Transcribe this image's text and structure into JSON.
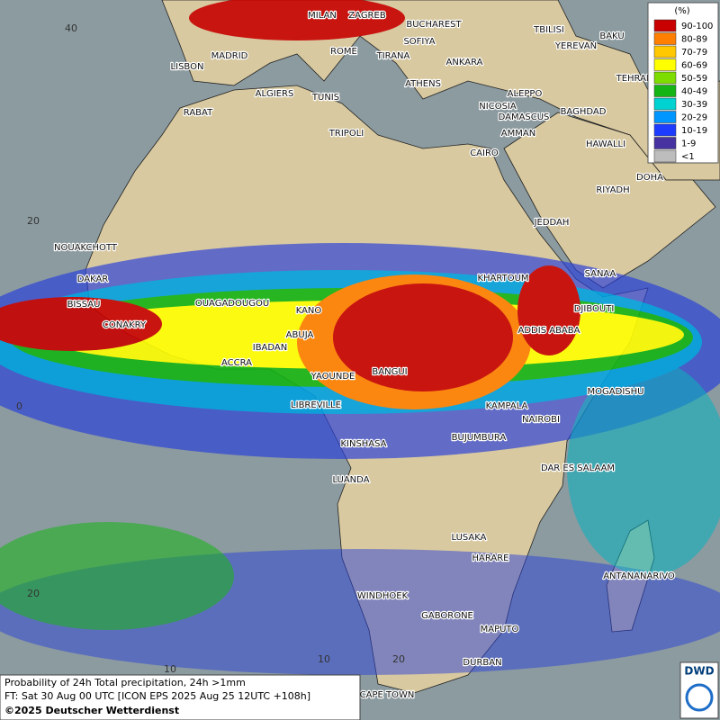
{
  "legend": {
    "unit": "(%)",
    "items": [
      {
        "label": "90-100",
        "color": "#c80000"
      },
      {
        "label": "80-89",
        "color": "#ff7f00"
      },
      {
        "label": "70-79",
        "color": "#ffc800"
      },
      {
        "label": "60-69",
        "color": "#ffff00"
      },
      {
        "label": "50-59",
        "color": "#7ddc00"
      },
      {
        "label": "40-49",
        "color": "#14b414"
      },
      {
        "label": "30-39",
        "color": "#00d2d2"
      },
      {
        "label": "20-29",
        "color": "#0096ff"
      },
      {
        "label": "10-19",
        "color": "#1e3cff"
      },
      {
        "label": "1-9",
        "color": "#4632a0"
      },
      {
        "label": "<1",
        "color": "#bdbdbd"
      }
    ]
  },
  "cities": [
    "MILAN",
    "ZAGREB",
    "BUCHAREST",
    "TBILISI",
    "BAKU",
    "SOFIYA",
    "YEREVAN",
    "MADRID",
    "ROME",
    "TIRANA",
    "ANKARA",
    "LISBON",
    "TEHRAN",
    "ATHENS",
    "ALGIERS",
    "TUNIS",
    "ALEPPO",
    "NICOSIA",
    "RABAT",
    "BAGHDAD",
    "DAMASCUS",
    "AMMAN",
    "TRIPOLI",
    "HAWALLI",
    "CAIRO",
    "DOHA",
    "RIYADH",
    "JEDDAH",
    "NOUAKCHOTT",
    "SANAA",
    "KHARTOUM",
    "DAKAR",
    "DJIBOUTI",
    "BISSAU",
    "OUAGADOUGOU",
    "KANO",
    "CONAKRY",
    "ADDIS ABABA",
    "ABUJA",
    "IBADAN",
    "ACCRA",
    "MOGADISHU",
    "YAOUNDE",
    "BANGUI",
    "LIBREVILLE",
    "KAMPALA",
    "NAIROBI",
    "BUJUMBURA",
    "KINSHASA",
    "DAR ES SALAAM",
    "LUANDA",
    "LUSAKA",
    "HARARE",
    "ANTANANARIVO",
    "WINDHOEK",
    "GABORONE",
    "MAPUTO",
    "DURBAN",
    "CAPE TOWN"
  ],
  "grid_labels": [
    "40",
    "20",
    "0",
    "20",
    "10",
    "10",
    "20"
  ],
  "footer": {
    "line1": "Probability of 24h Total precipitation, 24h >1mm",
    "line2": "FT: Sat 30 Aug 00 UTC [ICON EPS 2025 Aug 25 12UTC +108h]",
    "line3": "©2025 Deutscher Wetterdienst"
  },
  "logo": "DWD"
}
